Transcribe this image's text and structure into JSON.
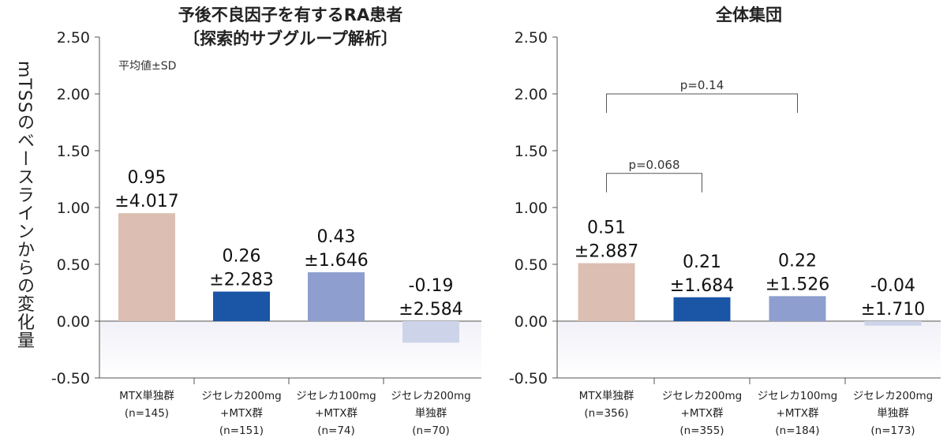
{
  "ylabel": "mTSSのベースラインからの変化量",
  "chart_data": [
    {
      "type": "bar",
      "title": "予後不良因子を有するRA患者",
      "subtitle": "〔探索的サブグループ解析〕",
      "note": "平均値±SD",
      "ylim": [
        -0.5,
        2.5
      ],
      "yticks": [
        "2.50",
        "2.00",
        "1.50",
        "1.00",
        "0.50",
        "0.00",
        "-0.50"
      ],
      "categories": [
        [
          "MTX単独群",
          "(n=145)"
        ],
        [
          "ジセレカ200mg",
          "+MTX群",
          "(n=151)"
        ],
        [
          "ジセレカ100mg",
          "+MTX群",
          "(n=74)"
        ],
        [
          "ジセレカ200mg",
          "単独群",
          "(n=70)"
        ]
      ],
      "values": [
        0.95,
        0.26,
        0.43,
        -0.19
      ],
      "value_labels": [
        "0.95",
        "0.26",
        "0.43",
        "-0.19"
      ],
      "sd_labels": [
        "±4.017",
        "±2.283",
        "±1.646",
        "±2.584"
      ],
      "colors": [
        "#dcbfb2",
        "#1a55a6",
        "#8e9fcf",
        "#cdd4ea"
      ],
      "brackets": []
    },
    {
      "type": "bar",
      "title": "全体集団",
      "ylim": [
        -0.5,
        2.5
      ],
      "yticks": [
        "2.50",
        "2.00",
        "1.50",
        "1.00",
        "0.50",
        "0.00",
        "-0.50"
      ],
      "categories": [
        [
          "MTX単独群",
          "(n=356)"
        ],
        [
          "ジセレカ200mg",
          "+MTX群",
          "(n=355)"
        ],
        [
          "ジセレカ100mg",
          "+MTX群",
          "(n=184)"
        ],
        [
          "ジセレカ200mg",
          "単独群",
          "(n=173)"
        ]
      ],
      "values": [
        0.51,
        0.21,
        0.22,
        -0.04
      ],
      "value_labels": [
        "0.51",
        "0.21",
        "0.22",
        "-0.04"
      ],
      "sd_labels": [
        "±2.887",
        "±1.684",
        "±1.526",
        "±1.710"
      ],
      "colors": [
        "#dcbfb2",
        "#1a55a6",
        "#8e9fcf",
        "#cdd4ea"
      ],
      "brackets": [
        {
          "from": 0,
          "to": 2,
          "label": "p=0.14",
          "level": 2.0
        },
        {
          "from": 0,
          "to": 1,
          "label": "p=0.068",
          "level": 1.3
        }
      ]
    }
  ]
}
